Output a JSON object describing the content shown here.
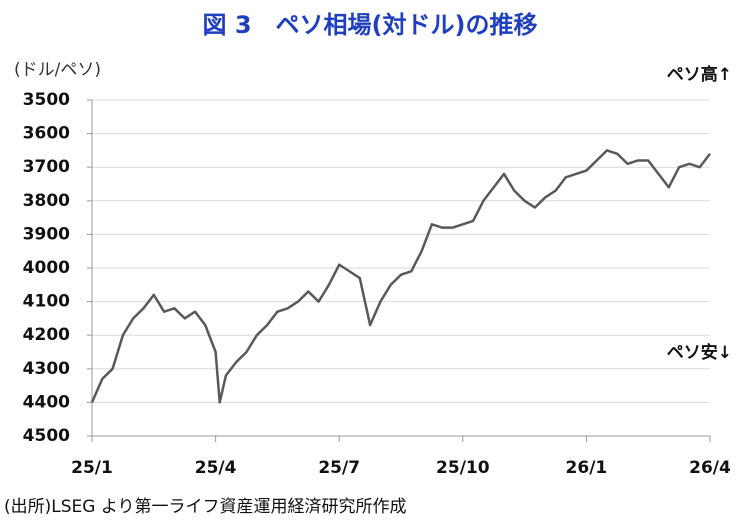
{
  "chart_data": {
    "type": "line",
    "title": "図 3　ペソ相場(対ドル)の推移",
    "y_label": "(ドル/ペソ)",
    "annotations": [
      "ペソ高↑",
      "ペソ安↓"
    ],
    "source": "(出所)LSEG より第一ライフ資産運用経済研究所作成",
    "ylim": [
      3500,
      4500
    ],
    "y_inverted": true,
    "yticks": [
      3500,
      3600,
      3700,
      3800,
      3900,
      4000,
      4100,
      4200,
      4300,
      4400,
      4500
    ],
    "xlim": [
      0,
      15
    ],
    "xticks": [
      {
        "value": 0,
        "label": "25/1"
      },
      {
        "value": 3,
        "label": "25/4"
      },
      {
        "value": 6,
        "label": "25/7"
      },
      {
        "value": 9,
        "label": "25/10"
      },
      {
        "value": 12,
        "label": "26/1"
      },
      {
        "value": 15,
        "label": "26/4"
      }
    ],
    "grid": true,
    "series": [
      {
        "color": "#595959",
        "x": [
          0,
          0.25,
          0.5,
          0.75,
          1,
          1.25,
          1.5,
          1.75,
          2,
          2.25,
          2.5,
          2.75,
          3,
          3.1,
          3.25,
          3.5,
          3.75,
          4,
          4.25,
          4.5,
          4.75,
          5,
          5.25,
          5.5,
          5.75,
          6,
          6.25,
          6.5,
          6.75,
          7,
          7.25,
          7.5,
          7.75,
          8,
          8.25,
          8.5,
          8.75,
          9,
          9.25,
          9.5,
          9.75,
          10,
          10.25,
          10.5,
          10.75,
          11,
          11.25,
          11.5,
          11.75,
          12,
          12.25,
          12.5,
          12.75,
          13,
          13.25,
          13.5,
          13.75,
          14,
          14.25,
          14.5,
          14.75,
          15
        ],
        "values": [
          4400,
          4330,
          4300,
          4200,
          4150,
          4120,
          4080,
          4130,
          4120,
          4150,
          4130,
          4170,
          4250,
          4400,
          4320,
          4280,
          4250,
          4200,
          4170,
          4130,
          4120,
          4100,
          4070,
          4100,
          4050,
          3990,
          4010,
          4030,
          4170,
          4100,
          4050,
          4020,
          4010,
          3950,
          3870,
          3880,
          3880,
          3870,
          3860,
          3800,
          3760,
          3720,
          3770,
          3800,
          3820,
          3790,
          3770,
          3730,
          3720,
          3710,
          3680,
          3650,
          3660,
          3690,
          3680,
          3680,
          3720,
          3760,
          3700,
          3690,
          3700,
          3660
        ]
      }
    ]
  }
}
